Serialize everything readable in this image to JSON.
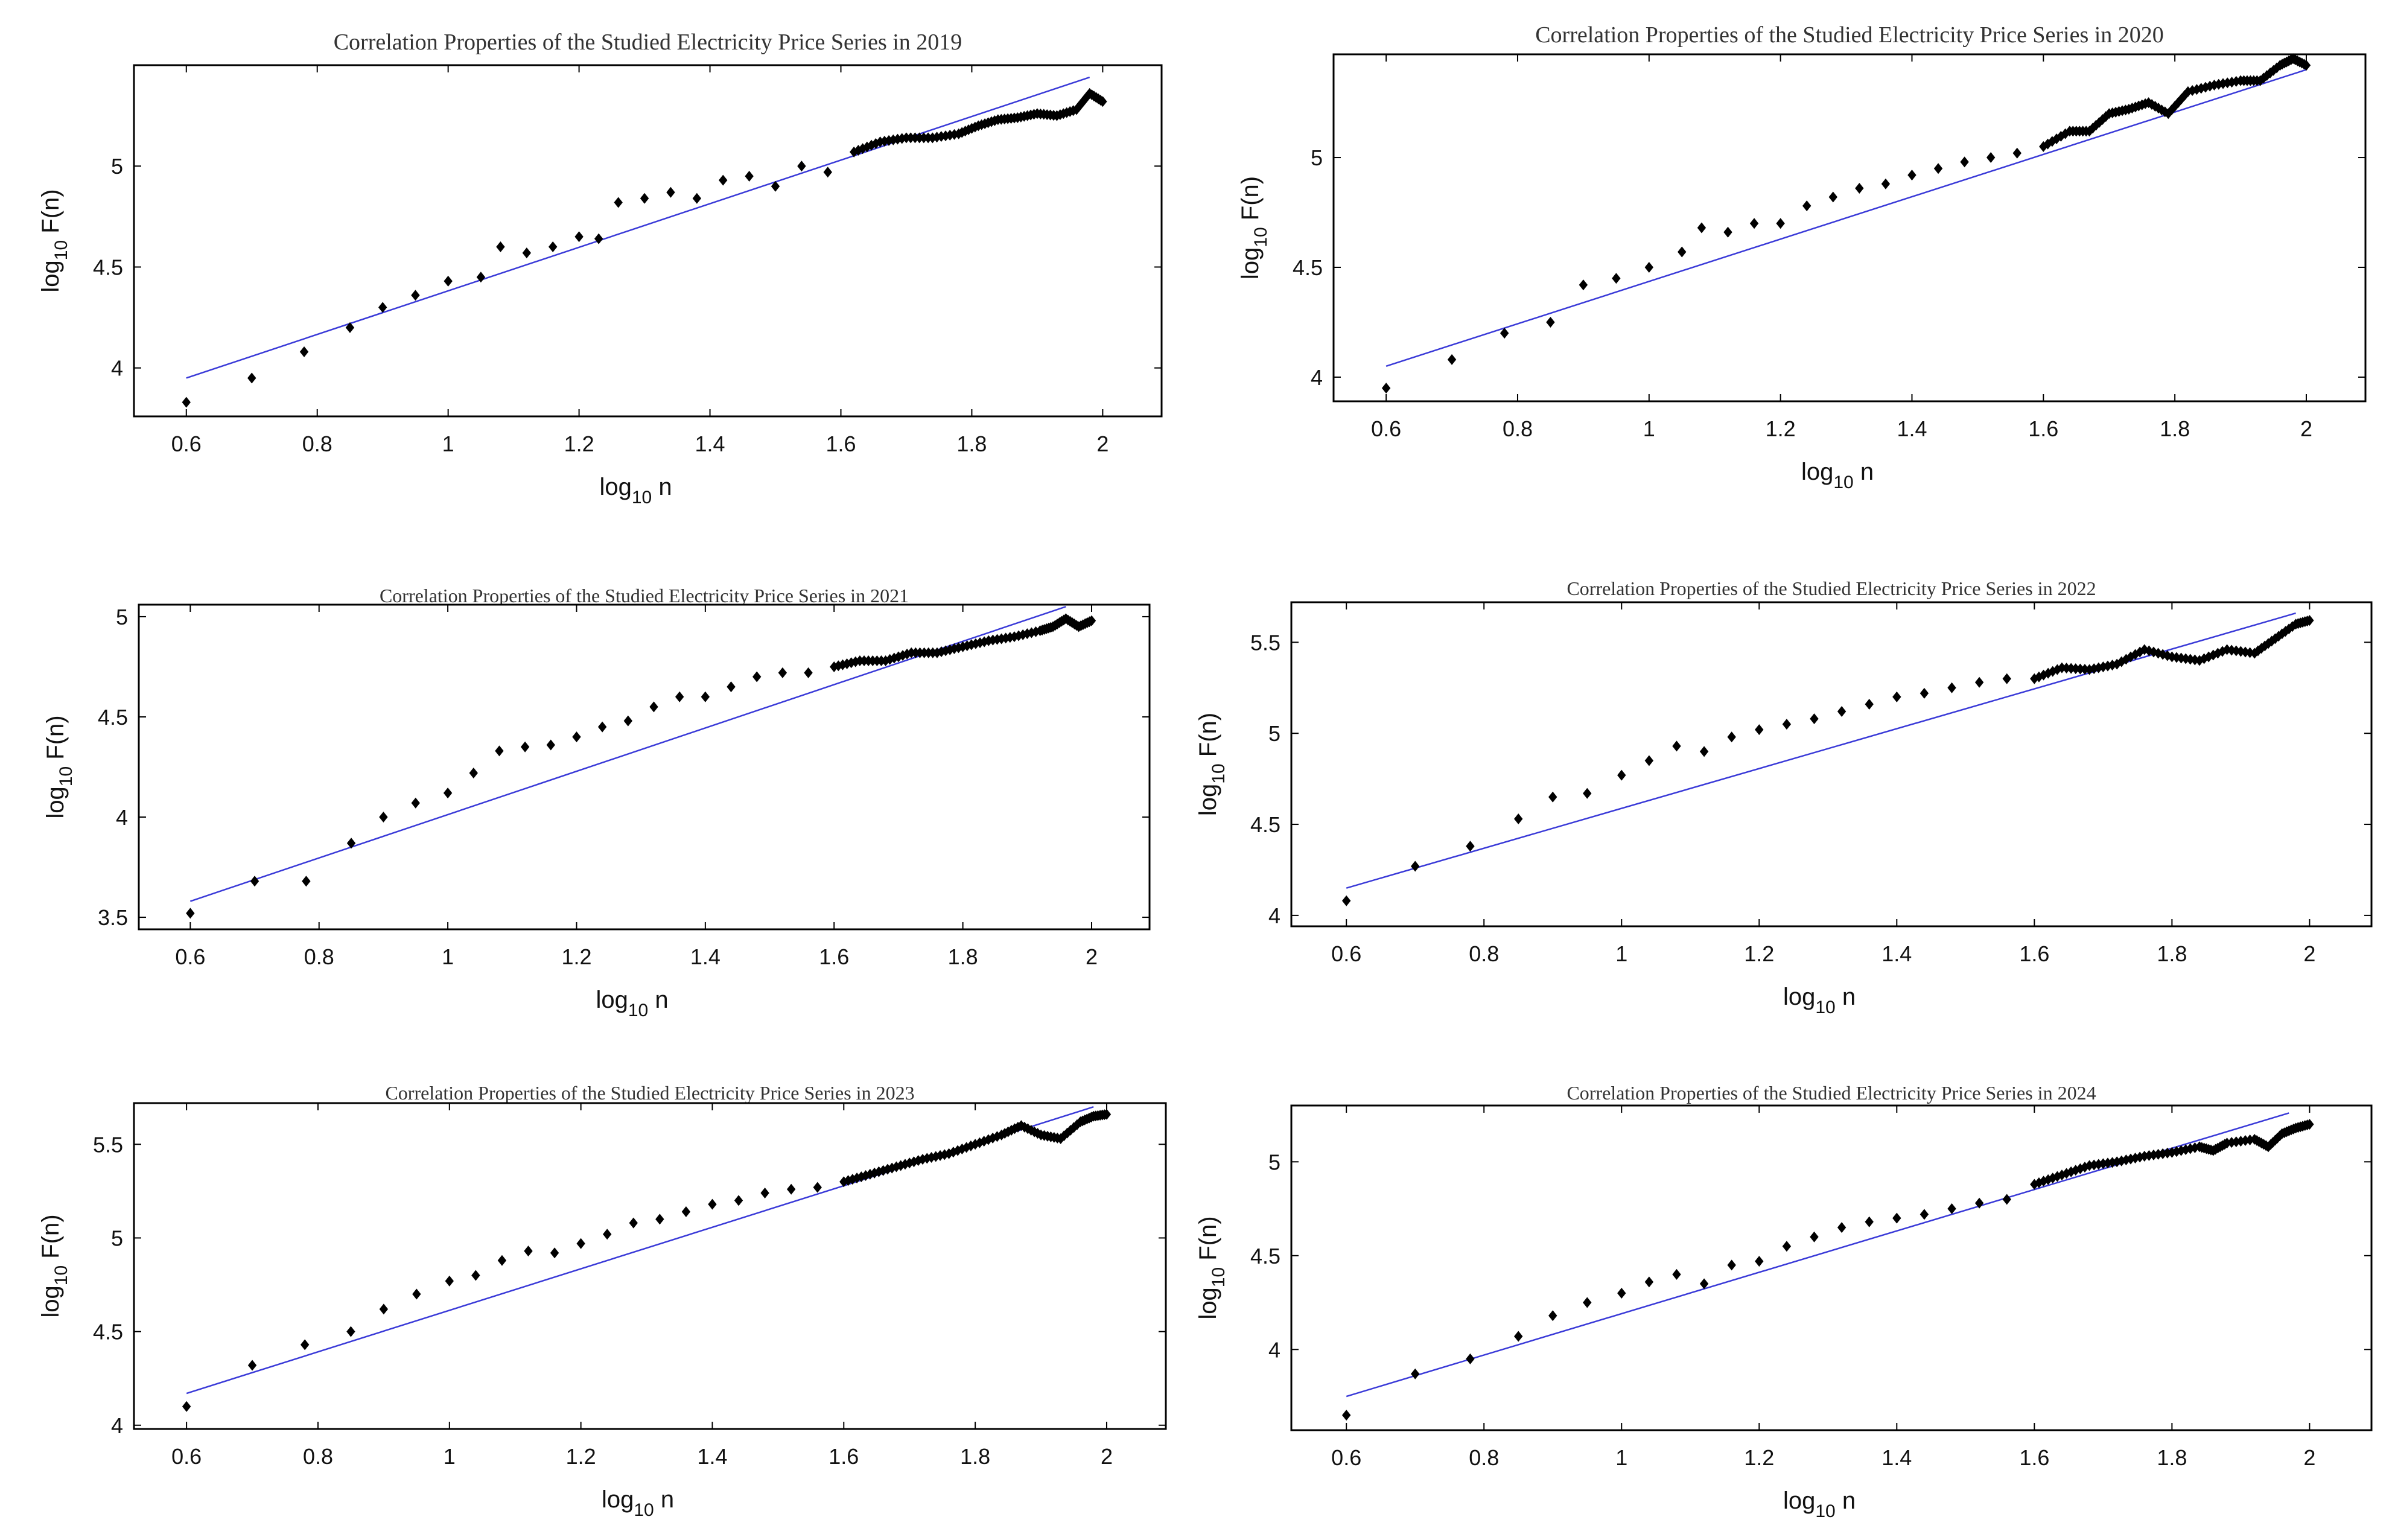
{
  "chart_data": [
    {
      "type": "scatter",
      "title": "Correlation Properties of the Studied Electricity Price Series in 2019",
      "xlabel": {
        "base": "log",
        "sub": "10",
        "rest": " n"
      },
      "ylabel": {
        "base": "log",
        "sub": "10",
        "rest": " F(n)"
      },
      "xlim": [
        0.52,
        2.09
      ],
      "ylim": [
        3.76,
        5.5
      ],
      "xticks": [
        0.6,
        0.8,
        1,
        1.2,
        1.4,
        1.6,
        1.8,
        2
      ],
      "xtick_labels": [
        "0.6",
        "0.8",
        "1",
        "1.2",
        "1.4",
        "1.6",
        "1.8",
        "2"
      ],
      "yticks": [
        4,
        4.5,
        5
      ],
      "ytick_labels": [
        "4",
        "4.5",
        "5"
      ],
      "fit_line": {
        "x": [
          0.6,
          1.98
        ],
        "y": [
          3.95,
          5.44
        ]
      },
      "key_points": [
        [
          0.6,
          3.83
        ],
        [
          0.7,
          3.95
        ],
        [
          0.78,
          4.08
        ],
        [
          0.85,
          4.2
        ],
        [
          0.9,
          4.3
        ],
        [
          0.95,
          4.36
        ],
        [
          1,
          4.43
        ],
        [
          1.05,
          4.45
        ],
        [
          1.08,
          4.6
        ],
        [
          1.12,
          4.57
        ],
        [
          1.16,
          4.6
        ],
        [
          1.2,
          4.65
        ],
        [
          1.23,
          4.64
        ],
        [
          1.26,
          4.82
        ],
        [
          1.3,
          4.84
        ],
        [
          1.34,
          4.87
        ],
        [
          1.38,
          4.84
        ],
        [
          1.42,
          4.93
        ],
        [
          1.46,
          4.95
        ],
        [
          1.5,
          4.9
        ],
        [
          1.54,
          5.0
        ],
        [
          1.58,
          4.97
        ],
        [
          1.62,
          5.07
        ],
        [
          1.66,
          5.12
        ],
        [
          1.7,
          5.14
        ],
        [
          1.74,
          5.14
        ],
        [
          1.78,
          5.16
        ],
        [
          1.81,
          5.2
        ],
        [
          1.84,
          5.23
        ],
        [
          1.87,
          5.24
        ],
        [
          1.9,
          5.26
        ],
        [
          1.93,
          5.25
        ],
        [
          1.96,
          5.28
        ],
        [
          1.98,
          5.36
        ],
        [
          2.0,
          5.32
        ]
      ]
    },
    {
      "type": "scatter",
      "title": "Correlation Properties of the Studied Electricity Price Series in  2020",
      "xlabel": {
        "base": "log",
        "sub": "10",
        "rest": " n"
      },
      "ylabel": {
        "base": "log",
        "sub": "10",
        "rest": " F(n)"
      },
      "xlim": [
        0.52,
        2.09
      ],
      "ylim": [
        3.89,
        5.47
      ],
      "xticks": [
        0.6,
        0.8,
        1,
        1.2,
        1.4,
        1.6,
        1.8,
        2
      ],
      "xtick_labels": [
        "0.6",
        "0.8",
        "1",
        "1.2",
        "1.4",
        "1.6",
        "1.8",
        "2"
      ],
      "yticks": [
        4,
        4.5,
        5
      ],
      "ytick_labels": [
        "4",
        "4.5",
        "5"
      ],
      "fit_line": {
        "x": [
          0.6,
          2.0
        ],
        "y": [
          4.05,
          5.4
        ]
      },
      "key_points": [
        [
          0.6,
          3.95
        ],
        [
          0.7,
          4.08
        ],
        [
          0.78,
          4.2
        ],
        [
          0.85,
          4.25
        ],
        [
          0.9,
          4.42
        ],
        [
          0.95,
          4.45
        ],
        [
          1,
          4.5
        ],
        [
          1.05,
          4.57
        ],
        [
          1.08,
          4.68
        ],
        [
          1.12,
          4.66
        ],
        [
          1.16,
          4.7
        ],
        [
          1.2,
          4.7
        ],
        [
          1.24,
          4.78
        ],
        [
          1.28,
          4.82
        ],
        [
          1.32,
          4.86
        ],
        [
          1.36,
          4.88
        ],
        [
          1.4,
          4.92
        ],
        [
          1.44,
          4.95
        ],
        [
          1.48,
          4.98
        ],
        [
          1.52,
          5.0
        ],
        [
          1.56,
          5.02
        ],
        [
          1.6,
          5.05
        ],
        [
          1.64,
          5.12
        ],
        [
          1.67,
          5.12
        ],
        [
          1.7,
          5.2
        ],
        [
          1.73,
          5.22
        ],
        [
          1.76,
          5.25
        ],
        [
          1.79,
          5.2
        ],
        [
          1.82,
          5.3
        ],
        [
          1.86,
          5.33
        ],
        [
          1.9,
          5.35
        ],
        [
          1.93,
          5.35
        ],
        [
          1.96,
          5.42
        ],
        [
          1.98,
          5.45
        ],
        [
          2.0,
          5.42
        ]
      ]
    },
    {
      "type": "scatter",
      "title": "Correlation Properties of the Studied Electricity Price Series in 2021",
      "xlabel": {
        "base": "log",
        "sub": "10",
        "rest": " n"
      },
      "ylabel": {
        "base": "log",
        "sub": "10",
        "rest": " F(n)"
      },
      "xlim": [
        0.52,
        2.09
      ],
      "ylim": [
        3.44,
        5.06
      ],
      "xticks": [
        0.6,
        0.8,
        1,
        1.2,
        1.4,
        1.6,
        1.8,
        2
      ],
      "xtick_labels": [
        "0.6",
        "0.8",
        "1",
        "1.2",
        "1.4",
        "1.6",
        "1.8",
        "2"
      ],
      "yticks": [
        3.5,
        4,
        4.5,
        5
      ],
      "ytick_labels": [
        "3.5",
        "4",
        "4.5",
        "5"
      ],
      "fit_line": {
        "x": [
          0.6,
          1.96
        ],
        "y": [
          3.58,
          5.05
        ]
      },
      "key_points": [
        [
          0.6,
          3.52
        ],
        [
          0.7,
          3.68
        ],
        [
          0.78,
          3.68
        ],
        [
          0.85,
          3.87
        ],
        [
          0.9,
          4.0
        ],
        [
          0.95,
          4.07
        ],
        [
          1,
          4.12
        ],
        [
          1.04,
          4.22
        ],
        [
          1.08,
          4.33
        ],
        [
          1.12,
          4.35
        ],
        [
          1.16,
          4.36
        ],
        [
          1.2,
          4.4
        ],
        [
          1.24,
          4.45
        ],
        [
          1.28,
          4.48
        ],
        [
          1.32,
          4.55
        ],
        [
          1.36,
          4.6
        ],
        [
          1.4,
          4.6
        ],
        [
          1.44,
          4.65
        ],
        [
          1.48,
          4.7
        ],
        [
          1.52,
          4.72
        ],
        [
          1.56,
          4.72
        ],
        [
          1.6,
          4.75
        ],
        [
          1.64,
          4.78
        ],
        [
          1.68,
          4.78
        ],
        [
          1.72,
          4.82
        ],
        [
          1.76,
          4.82
        ],
        [
          1.8,
          4.85
        ],
        [
          1.84,
          4.88
        ],
        [
          1.88,
          4.9
        ],
        [
          1.92,
          4.93
        ],
        [
          1.94,
          4.95
        ],
        [
          1.96,
          4.99
        ],
        [
          1.98,
          4.95
        ],
        [
          2.0,
          4.98
        ]
      ]
    },
    {
      "type": "scatter",
      "title": "Correlation Properties of the Studied Electricity Price Series in  2022",
      "xlabel": {
        "base": "log",
        "sub": "10",
        "rest": " n"
      },
      "ylabel": {
        "base": "log",
        "sub": "10",
        "rest": " F(n)"
      },
      "xlim": [
        0.52,
        2.09
      ],
      "ylim": [
        3.94,
        5.72
      ],
      "xticks": [
        0.6,
        0.8,
        1,
        1.2,
        1.4,
        1.6,
        1.8,
        2
      ],
      "xtick_labels": [
        "0.6",
        "0.8",
        "1",
        "1.2",
        "1.4",
        "1.6",
        "1.8",
        "2"
      ],
      "yticks": [
        4,
        4.5,
        5,
        5.5
      ],
      "ytick_labels": [
        "4",
        "4.5",
        "5",
        "5.5"
      ],
      "fit_line": {
        "x": [
          0.6,
          1.98
        ],
        "y": [
          4.15,
          5.66
        ]
      },
      "key_points": [
        [
          0.6,
          4.08
        ],
        [
          0.7,
          4.27
        ],
        [
          0.78,
          4.38
        ],
        [
          0.85,
          4.53
        ],
        [
          0.9,
          4.65
        ],
        [
          0.95,
          4.67
        ],
        [
          1,
          4.77
        ],
        [
          1.04,
          4.85
        ],
        [
          1.08,
          4.93
        ],
        [
          1.12,
          4.9
        ],
        [
          1.16,
          4.98
        ],
        [
          1.2,
          5.02
        ],
        [
          1.24,
          5.05
        ],
        [
          1.28,
          5.08
        ],
        [
          1.32,
          5.12
        ],
        [
          1.36,
          5.16
        ],
        [
          1.4,
          5.2
        ],
        [
          1.44,
          5.22
        ],
        [
          1.48,
          5.25
        ],
        [
          1.52,
          5.28
        ],
        [
          1.56,
          5.3
        ],
        [
          1.6,
          5.3
        ],
        [
          1.64,
          5.36
        ],
        [
          1.68,
          5.35
        ],
        [
          1.72,
          5.38
        ],
        [
          1.76,
          5.46
        ],
        [
          1.8,
          5.42
        ],
        [
          1.84,
          5.4
        ],
        [
          1.88,
          5.46
        ],
        [
          1.92,
          5.44
        ],
        [
          1.95,
          5.52
        ],
        [
          1.98,
          5.6
        ],
        [
          2.0,
          5.62
        ]
      ]
    },
    {
      "type": "scatter",
      "title": "Correlation Properties of the Studied Electricity Price Series in 2023",
      "xlabel": {
        "base": "log",
        "sub": "10",
        "rest": " n"
      },
      "ylabel": {
        "base": "log",
        "sub": "10",
        "rest": " F(n)"
      },
      "xlim": [
        0.52,
        2.09
      ],
      "ylim": [
        3.98,
        5.72
      ],
      "xticks": [
        0.6,
        0.8,
        1,
        1.2,
        1.4,
        1.6,
        1.8,
        2
      ],
      "xtick_labels": [
        "0.6",
        "0.8",
        "1",
        "1.2",
        "1.4",
        "1.6",
        "1.8",
        "2"
      ],
      "yticks": [
        4,
        4.5,
        5,
        5.5
      ],
      "ytick_labels": [
        "4",
        "4.5",
        "5",
        "5.5"
      ],
      "fit_line": {
        "x": [
          0.6,
          1.98
        ],
        "y": [
          4.17,
          5.7
        ]
      },
      "key_points": [
        [
          0.6,
          4.1
        ],
        [
          0.7,
          4.32
        ],
        [
          0.78,
          4.43
        ],
        [
          0.85,
          4.5
        ],
        [
          0.9,
          4.62
        ],
        [
          0.95,
          4.7
        ],
        [
          1,
          4.77
        ],
        [
          1.04,
          4.8
        ],
        [
          1.08,
          4.88
        ],
        [
          1.12,
          4.93
        ],
        [
          1.16,
          4.92
        ],
        [
          1.2,
          4.97
        ],
        [
          1.24,
          5.02
        ],
        [
          1.28,
          5.08
        ],
        [
          1.32,
          5.1
        ],
        [
          1.36,
          5.14
        ],
        [
          1.4,
          5.18
        ],
        [
          1.44,
          5.2
        ],
        [
          1.48,
          5.24
        ],
        [
          1.52,
          5.26
        ],
        [
          1.56,
          5.27
        ],
        [
          1.6,
          5.3
        ],
        [
          1.64,
          5.34
        ],
        [
          1.68,
          5.38
        ],
        [
          1.72,
          5.42
        ],
        [
          1.76,
          5.45
        ],
        [
          1.8,
          5.5
        ],
        [
          1.84,
          5.55
        ],
        [
          1.87,
          5.6
        ],
        [
          1.9,
          5.55
        ],
        [
          1.93,
          5.53
        ],
        [
          1.96,
          5.62
        ],
        [
          1.98,
          5.65
        ],
        [
          2.0,
          5.66
        ]
      ]
    },
    {
      "type": "scatter",
      "title": "Correlation Properties of the Studied Electricity Price Series in  2024",
      "xlabel": {
        "base": "log",
        "sub": "10",
        "rest": " n"
      },
      "ylabel": {
        "base": "log",
        "sub": "10",
        "rest": " F(n)"
      },
      "xlim": [
        0.52,
        2.09
      ],
      "ylim": [
        3.57,
        5.3
      ],
      "xticks": [
        0.6,
        0.8,
        1,
        1.2,
        1.4,
        1.6,
        1.8,
        2
      ],
      "xtick_labels": [
        "0.6",
        "0.8",
        "1",
        "1.2",
        "1.4",
        "1.6",
        "1.8",
        "2"
      ],
      "yticks": [
        4,
        4.5,
        5
      ],
      "ytick_labels": [
        "4",
        "4.5",
        "5"
      ],
      "fit_line": {
        "x": [
          0.6,
          1.97
        ],
        "y": [
          3.75,
          5.26
        ]
      },
      "key_points": [
        [
          0.6,
          3.65
        ],
        [
          0.7,
          3.87
        ],
        [
          0.78,
          3.95
        ],
        [
          0.85,
          4.07
        ],
        [
          0.9,
          4.18
        ],
        [
          0.95,
          4.25
        ],
        [
          1,
          4.3
        ],
        [
          1.04,
          4.36
        ],
        [
          1.08,
          4.4
        ],
        [
          1.12,
          4.35
        ],
        [
          1.16,
          4.45
        ],
        [
          1.2,
          4.47
        ],
        [
          1.24,
          4.55
        ],
        [
          1.28,
          4.6
        ],
        [
          1.32,
          4.65
        ],
        [
          1.36,
          4.68
        ],
        [
          1.4,
          4.7
        ],
        [
          1.44,
          4.72
        ],
        [
          1.48,
          4.75
        ],
        [
          1.52,
          4.78
        ],
        [
          1.56,
          4.8
        ],
        [
          1.6,
          4.88
        ],
        [
          1.64,
          4.93
        ],
        [
          1.68,
          4.98
        ],
        [
          1.72,
          5.0
        ],
        [
          1.76,
          5.03
        ],
        [
          1.8,
          5.05
        ],
        [
          1.84,
          5.08
        ],
        [
          1.86,
          5.06
        ],
        [
          1.88,
          5.1
        ],
        [
          1.92,
          5.12
        ],
        [
          1.94,
          5.08
        ],
        [
          1.96,
          5.15
        ],
        [
          1.98,
          5.18
        ],
        [
          2.0,
          5.2
        ]
      ]
    }
  ]
}
